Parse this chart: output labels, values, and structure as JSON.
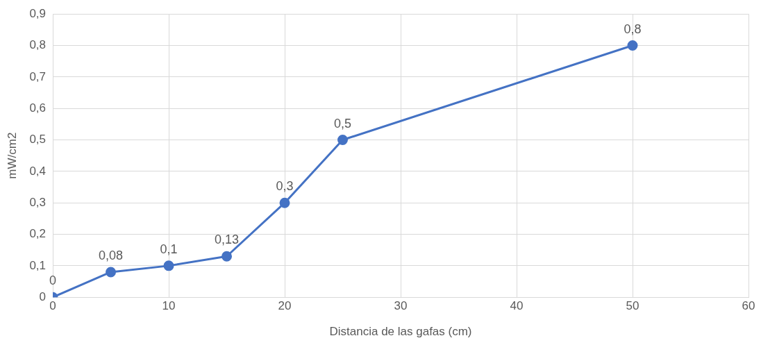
{
  "chart_data": {
    "type": "line",
    "xlabel": "Distancia de las gafas (cm)",
    "ylabel": "mW/cm2",
    "x": [
      0,
      5,
      10,
      15,
      20,
      25,
      50
    ],
    "series": [
      {
        "color": "#4472c4",
        "values": [
          0,
          0.08,
          0.1,
          0.13,
          0.3,
          0.5,
          0.8
        ],
        "value_labels": [
          "0",
          "0,08",
          "0,1",
          "0,13",
          "0,3",
          "0,5",
          "0,8"
        ]
      }
    ],
    "xlim": [
      0,
      60
    ],
    "xticks": [
      0,
      10,
      20,
      30,
      40,
      50,
      60
    ],
    "ylim": [
      0,
      0.9
    ],
    "yticks": [
      {
        "value": 0,
        "label": "0"
      },
      {
        "value": 0.1,
        "label": "0,1"
      },
      {
        "value": 0.2,
        "label": "0,2"
      },
      {
        "value": 0.3,
        "label": "0,3"
      },
      {
        "value": 0.4,
        "label": "0,4"
      },
      {
        "value": 0.5,
        "label": "0,5"
      },
      {
        "value": 0.6,
        "label": "0,6"
      },
      {
        "value": 0.7,
        "label": "0,7"
      },
      {
        "value": 0.8,
        "label": "0,8"
      },
      {
        "value": 0.9,
        "label": "0,9"
      }
    ],
    "grid": true,
    "legend": false,
    "marker": "circle",
    "line_style": "solid"
  }
}
